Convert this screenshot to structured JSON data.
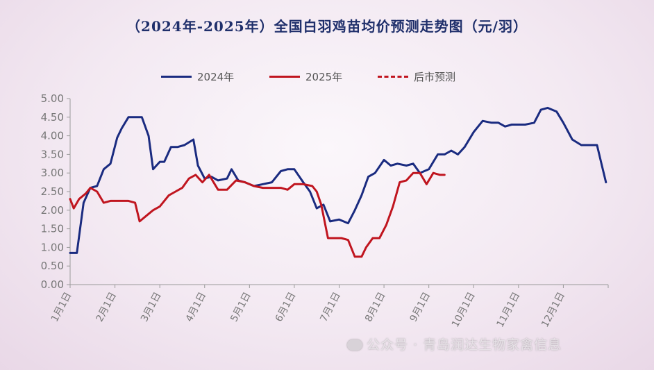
{
  "watermark": "公众号 · 青岛润达生物家禽信息",
  "chart_data": {
    "type": "line",
    "title": "（2024年-2025年）全国白羽鸡苗均价预测走势图（元/羽）",
    "xlabel": "",
    "ylabel": "",
    "ylim": [
      0,
      5
    ],
    "yticks": [
      "0.00",
      "0.50",
      "1.00",
      "1.50",
      "2.00",
      "2.50",
      "3.00",
      "3.50",
      "4.00",
      "4.50",
      "5.00"
    ],
    "xlim": [
      1,
      13
    ],
    "xticks": [
      "1月1日",
      "2月1日",
      "3月1日",
      "4月1日",
      "5月1日",
      "6月1日",
      "7月1日",
      "8月1日",
      "9月1日",
      "10月1日",
      "11月1日",
      "12月1日"
    ],
    "legend": [
      "2024年",
      "2025年",
      "后市预测"
    ],
    "legend_position": "top",
    "grid": false,
    "colors": {
      "2024年": "#1a2b80",
      "2025年": "#c0151f",
      "后市预测": "#c0151f"
    },
    "series": [
      {
        "name": "2024年",
        "x": [
          1.0,
          1.15,
          1.3,
          1.45,
          1.6,
          1.75,
          1.9,
          2.05,
          2.15,
          2.3,
          2.45,
          2.6,
          2.75,
          2.85,
          3.0,
          3.1,
          3.25,
          3.4,
          3.55,
          3.75,
          3.85,
          4.0,
          4.15,
          4.3,
          4.5,
          4.6,
          4.75,
          4.9,
          5.1,
          5.3,
          5.5,
          5.7,
          5.85,
          6.0,
          6.2,
          6.35,
          6.5,
          6.65,
          6.8,
          7.0,
          7.2,
          7.35,
          7.5,
          7.65,
          7.8,
          8.0,
          8.15,
          8.3,
          8.5,
          8.65,
          8.8,
          9.0,
          9.2,
          9.35,
          9.5,
          9.65,
          9.8,
          10.0,
          10.2,
          10.4,
          10.55,
          10.7,
          10.85,
          11.0,
          11.15,
          11.35,
          11.5,
          11.65,
          11.85,
          12.0,
          12.2,
          12.4,
          12.55,
          12.75,
          12.85,
          12.95
        ],
        "values": [
          0.85,
          0.85,
          2.2,
          2.6,
          2.65,
          3.1,
          3.25,
          3.95,
          4.2,
          4.5,
          4.5,
          4.5,
          4.0,
          3.1,
          3.3,
          3.3,
          3.7,
          3.7,
          3.75,
          3.9,
          3.2,
          2.85,
          2.9,
          2.8,
          2.85,
          3.1,
          2.8,
          2.75,
          2.65,
          2.7,
          2.75,
          3.05,
          3.1,
          3.1,
          2.75,
          2.5,
          2.05,
          2.15,
          1.7,
          1.75,
          1.65,
          2.0,
          2.4,
          2.9,
          3.0,
          3.35,
          3.2,
          3.25,
          3.2,
          3.25,
          3.0,
          3.1,
          3.5,
          3.5,
          3.6,
          3.5,
          3.7,
          4.1,
          4.4,
          4.35,
          4.35,
          4.25,
          4.3,
          4.3,
          4.3,
          4.35,
          4.7,
          4.75,
          4.65,
          4.35,
          3.9,
          3.75,
          3.75,
          3.75,
          3.25,
          2.75
        ]
      },
      {
        "name": "2025年",
        "x": [
          1.0,
          1.08,
          1.2,
          1.35,
          1.45,
          1.6,
          1.75,
          1.9,
          2.1,
          2.3,
          2.45,
          2.55,
          2.7,
          2.85,
          3.0,
          3.2,
          3.35,
          3.5,
          3.65,
          3.8,
          3.95,
          4.1,
          4.3,
          4.5,
          4.7,
          4.9,
          5.1,
          5.3,
          5.5,
          5.7,
          5.85,
          6.0,
          6.2,
          6.4,
          6.5,
          6.6,
          6.75,
          6.9,
          7.05,
          7.2,
          7.35,
          7.5,
          7.6,
          7.75,
          7.9,
          8.05,
          8.2,
          8.35,
          8.5,
          8.65,
          8.8,
          8.95,
          9.1,
          9.25,
          9.35
        ],
        "values": [
          2.3,
          2.05,
          2.3,
          2.45,
          2.6,
          2.5,
          2.2,
          2.25,
          2.25,
          2.25,
          2.2,
          1.7,
          1.85,
          2.0,
          2.1,
          2.4,
          2.5,
          2.6,
          2.85,
          2.95,
          2.75,
          2.95,
          2.55,
          2.55,
          2.8,
          2.75,
          2.65,
          2.6,
          2.6,
          2.6,
          2.55,
          2.7,
          2.7,
          2.65,
          2.5,
          2.15,
          1.25,
          1.25,
          1.25,
          1.2,
          0.75,
          0.75,
          1.0,
          1.25,
          1.25,
          1.6,
          2.1,
          2.75,
          2.8,
          3.0,
          3.0,
          2.7,
          3.0,
          2.95,
          2.95
        ]
      },
      {
        "name": "后市预测",
        "x": [],
        "values": []
      }
    ]
  }
}
